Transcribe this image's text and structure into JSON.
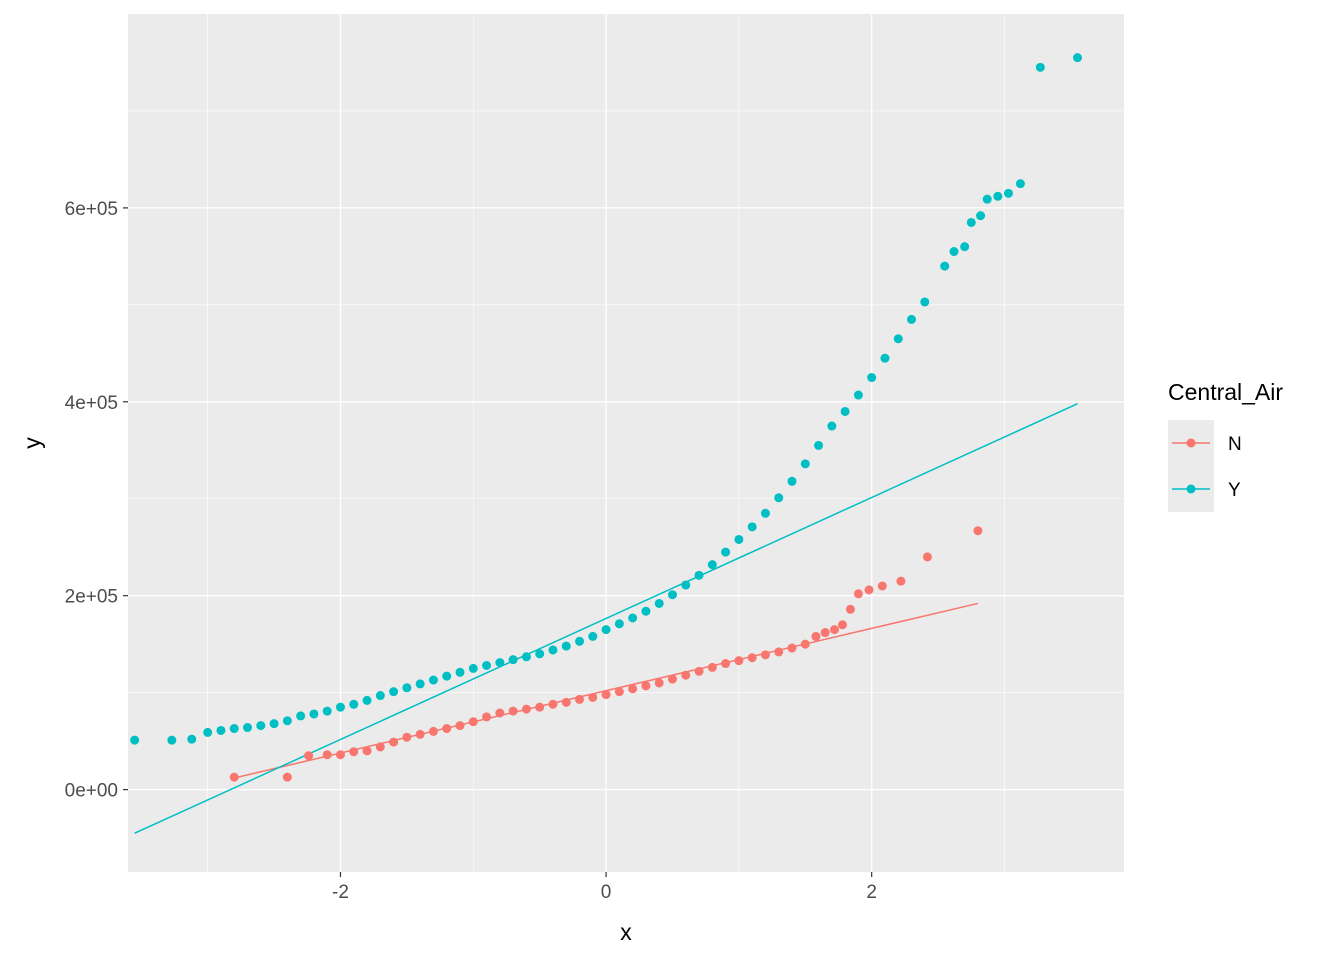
{
  "chart_data": {
    "type": "scatter",
    "subtype": "qq-plot",
    "title": "",
    "xlabel": "x",
    "ylabel": "y",
    "xlim": [
      -3.6,
      3.9
    ],
    "ylim": [
      -85000,
      800000
    ],
    "x_ticks": [
      {
        "value": -2,
        "label": "-2"
      },
      {
        "value": 0,
        "label": "0"
      },
      {
        "value": 2,
        "label": "2"
      }
    ],
    "y_ticks": [
      {
        "value": 0,
        "label": "0e+00"
      },
      {
        "value": 200000,
        "label": "2e+05"
      },
      {
        "value": 400000,
        "label": "4e+05"
      },
      {
        "value": 600000,
        "label": "6e+05"
      }
    ],
    "grid": true,
    "panel_background": "#EBEBEB",
    "grid_color": "#FFFFFF",
    "legend": {
      "title": "Central_Air",
      "position": "right",
      "entries": [
        {
          "label": "N",
          "color": "#F8766D"
        },
        {
          "label": "Y",
          "color": "#00BFC4"
        }
      ]
    },
    "series": [
      {
        "name": "N",
        "color": "#F8766D",
        "points": [
          [
            -2.8,
            12800
          ],
          [
            -2.4,
            12800
          ],
          [
            -2.24,
            35000
          ],
          [
            -2.1,
            36000
          ],
          [
            -2.0,
            36000
          ],
          [
            -1.9,
            39000
          ],
          [
            -1.8,
            40000
          ],
          [
            -1.7,
            44000
          ],
          [
            -1.6,
            49000
          ],
          [
            -1.5,
            54000
          ],
          [
            -1.4,
            57000
          ],
          [
            -1.3,
            60000
          ],
          [
            -1.2,
            63000
          ],
          [
            -1.1,
            66000
          ],
          [
            -1.0,
            70000
          ],
          [
            -0.9,
            75000
          ],
          [
            -0.8,
            79000
          ],
          [
            -0.7,
            81000
          ],
          [
            -0.6,
            83000
          ],
          [
            -0.5,
            85000
          ],
          [
            -0.4,
            88000
          ],
          [
            -0.3,
            90000
          ],
          [
            -0.2,
            93000
          ],
          [
            -0.1,
            95000
          ],
          [
            0.0,
            98000
          ],
          [
            0.1,
            101000
          ],
          [
            0.2,
            104000
          ],
          [
            0.3,
            107000
          ],
          [
            0.4,
            110000
          ],
          [
            0.5,
            114000
          ],
          [
            0.6,
            118000
          ],
          [
            0.7,
            122000
          ],
          [
            0.8,
            126000
          ],
          [
            0.9,
            130000
          ],
          [
            1.0,
            133000
          ],
          [
            1.1,
            136000
          ],
          [
            1.2,
            139000
          ],
          [
            1.3,
            142000
          ],
          [
            1.4,
            146000
          ],
          [
            1.5,
            150000
          ],
          [
            1.58,
            158000
          ],
          [
            1.65,
            162000
          ],
          [
            1.72,
            165000
          ],
          [
            1.78,
            170000
          ],
          [
            1.84,
            186000
          ],
          [
            1.9,
            202000
          ],
          [
            1.98,
            206000
          ],
          [
            2.08,
            210000
          ],
          [
            2.22,
            215000
          ],
          [
            2.42,
            240000
          ],
          [
            2.8,
            267000
          ]
        ],
        "reference_line": {
          "x": [
            -2.8,
            2.8
          ],
          "y": [
            12000,
            192000
          ]
        }
      },
      {
        "name": "Y",
        "color": "#00BFC4",
        "points": [
          [
            -3.55,
            51000
          ],
          [
            -3.27,
            51000
          ],
          [
            -3.12,
            52000
          ],
          [
            -3.0,
            59000
          ],
          [
            -2.9,
            61000
          ],
          [
            -2.8,
            63000
          ],
          [
            -2.7,
            64000
          ],
          [
            -2.6,
            66000
          ],
          [
            -2.5,
            68000
          ],
          [
            -2.4,
            71000
          ],
          [
            -2.3,
            76000
          ],
          [
            -2.2,
            78000
          ],
          [
            -2.1,
            81000
          ],
          [
            -2.0,
            85000
          ],
          [
            -1.9,
            88000
          ],
          [
            -1.8,
            92000
          ],
          [
            -1.7,
            97000
          ],
          [
            -1.6,
            101000
          ],
          [
            -1.5,
            105000
          ],
          [
            -1.4,
            109000
          ],
          [
            -1.3,
            113000
          ],
          [
            -1.2,
            117000
          ],
          [
            -1.1,
            121000
          ],
          [
            -1.0,
            125000
          ],
          [
            -0.9,
            128000
          ],
          [
            -0.8,
            131000
          ],
          [
            -0.7,
            134000
          ],
          [
            -0.6,
            137000
          ],
          [
            -0.5,
            140000
          ],
          [
            -0.4,
            144000
          ],
          [
            -0.3,
            148000
          ],
          [
            -0.2,
            153000
          ],
          [
            -0.1,
            158000
          ],
          [
            0.0,
            165000
          ],
          [
            0.1,
            171000
          ],
          [
            0.2,
            177000
          ],
          [
            0.3,
            184000
          ],
          [
            0.4,
            192000
          ],
          [
            0.5,
            201000
          ],
          [
            0.6,
            211000
          ],
          [
            0.7,
            221000
          ],
          [
            0.8,
            232000
          ],
          [
            0.9,
            245000
          ],
          [
            1.0,
            258000
          ],
          [
            1.1,
            271000
          ],
          [
            1.2,
            285000
          ],
          [
            1.3,
            301000
          ],
          [
            1.4,
            318000
          ],
          [
            1.5,
            336000
          ],
          [
            1.6,
            355000
          ],
          [
            1.7,
            375000
          ],
          [
            1.8,
            390000
          ],
          [
            1.9,
            407000
          ],
          [
            2.0,
            425000
          ],
          [
            2.1,
            445000
          ],
          [
            2.2,
            465000
          ],
          [
            2.3,
            485000
          ],
          [
            2.4,
            503000
          ],
          [
            2.55,
            540000
          ],
          [
            2.62,
            555000
          ],
          [
            2.7,
            560000
          ],
          [
            2.75,
            585000
          ],
          [
            2.82,
            592000
          ],
          [
            2.87,
            609000
          ],
          [
            2.95,
            612000
          ],
          [
            3.03,
            615000
          ],
          [
            3.12,
            625000
          ],
          [
            3.27,
            745000
          ],
          [
            3.55,
            755000
          ]
        ],
        "reference_line": {
          "x": [
            -3.55,
            3.55
          ],
          "y": [
            -45000,
            398000
          ]
        }
      }
    ]
  }
}
